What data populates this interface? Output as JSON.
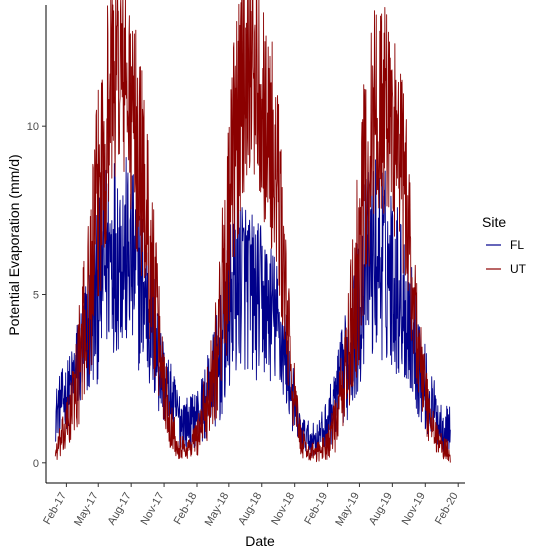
{
  "chart_data": {
    "type": "line",
    "title": "",
    "xlabel": "Date",
    "ylabel": "Potential Evaporation (mm/d)",
    "xlim": [
      "2016-12-06",
      "2020-02-20"
    ],
    "ylim": [
      -0.6,
      13.6
    ],
    "grid": false,
    "legend": {
      "title": "Site",
      "placement": "right"
    },
    "x_ticks": [
      {
        "date": "2017-02-01",
        "label": "Feb-17"
      },
      {
        "date": "2017-05-01",
        "label": "May-17"
      },
      {
        "date": "2017-08-01",
        "label": "Aug-17"
      },
      {
        "date": "2017-11-01",
        "label": "Nov-17"
      },
      {
        "date": "2018-02-01",
        "label": "Feb-18"
      },
      {
        "date": "2018-05-01",
        "label": "May-18"
      },
      {
        "date": "2018-08-01",
        "label": "Aug-18"
      },
      {
        "date": "2018-11-01",
        "label": "Nov-18"
      },
      {
        "date": "2019-02-01",
        "label": "Feb-19"
      },
      {
        "date": "2019-05-01",
        "label": "May-19"
      },
      {
        "date": "2019-08-01",
        "label": "Aug-19"
      },
      {
        "date": "2019-11-01",
        "label": "Nov-19"
      },
      {
        "date": "2020-02-01",
        "label": "Feb-20"
      }
    ],
    "y_ticks": [
      0,
      5,
      10
    ],
    "series": [
      {
        "name": "FL",
        "color": "#00008b",
        "x": [
          "2017-01-01",
          "2017-01-15",
          "2017-02-01",
          "2017-02-15",
          "2017-03-01",
          "2017-03-15",
          "2017-04-01",
          "2017-04-15",
          "2017-05-01",
          "2017-05-15",
          "2017-06-01",
          "2017-06-15",
          "2017-07-01",
          "2017-07-15",
          "2017-08-01",
          "2017-08-15",
          "2017-09-01",
          "2017-09-15",
          "2017-10-01",
          "2017-10-15",
          "2017-11-01",
          "2017-11-15",
          "2017-12-01",
          "2017-12-15",
          "2018-01-01",
          "2018-01-15",
          "2018-02-01",
          "2018-02-15",
          "2018-03-01",
          "2018-03-15",
          "2018-04-01",
          "2018-04-15",
          "2018-05-01",
          "2018-05-15",
          "2018-06-01",
          "2018-06-15",
          "2018-07-01",
          "2018-07-15",
          "2018-08-01",
          "2018-08-15",
          "2018-09-01",
          "2018-09-15",
          "2018-10-01",
          "2018-10-15",
          "2018-11-01",
          "2018-11-15",
          "2018-12-01",
          "2018-12-15",
          "2019-01-01",
          "2019-01-15",
          "2019-02-01",
          "2019-02-15",
          "2019-03-01",
          "2019-03-15",
          "2019-04-01",
          "2019-04-15",
          "2019-05-01",
          "2019-05-15",
          "2019-06-01",
          "2019-06-15",
          "2019-07-01",
          "2019-07-15",
          "2019-08-01",
          "2019-08-15",
          "2019-09-01",
          "2019-09-15",
          "2019-10-01",
          "2019-10-15",
          "2019-11-01",
          "2019-11-15",
          "2019-12-01",
          "2019-12-15",
          "2020-01-01",
          "2020-01-10"
        ],
        "values": [
          1.4,
          1.8,
          2.0,
          2.3,
          2.8,
          3.2,
          3.8,
          4.3,
          5.0,
          5.8,
          6.2,
          6.5,
          6.4,
          6.2,
          5.9,
          5.6,
          5.2,
          4.6,
          3.9,
          3.1,
          2.4,
          2.0,
          1.6,
          1.3,
          1.2,
          1.2,
          1.4,
          1.6,
          1.9,
          2.3,
          2.8,
          3.5,
          4.3,
          5.2,
          5.6,
          5.4,
          5.1,
          4.8,
          4.8,
          4.6,
          4.4,
          4.0,
          3.4,
          2.6,
          1.6,
          1.0,
          0.8,
          0.7,
          0.7,
          0.9,
          1.2,
          1.6,
          2.1,
          2.6,
          3.1,
          3.8,
          4.6,
          5.6,
          6.0,
          6.2,
          6.0,
          5.8,
          5.6,
          5.2,
          4.8,
          4.3,
          3.6,
          2.9,
          2.2,
          1.7,
          1.4,
          1.1,
          1.0,
          1.0
        ],
        "spread": [
          0.8,
          0.9,
          1.0,
          1.1,
          1.4,
          1.7,
          2.0,
          2.3,
          2.6,
          3.0,
          3.1,
          3.2,
          3.1,
          3.0,
          2.9,
          2.8,
          2.6,
          2.4,
          2.1,
          1.7,
          1.3,
          1.1,
          1.0,
          0.9,
          0.8,
          0.8,
          0.9,
          1.0,
          1.2,
          1.5,
          1.8,
          2.1,
          2.4,
          2.7,
          2.8,
          2.7,
          2.5,
          2.4,
          2.3,
          2.2,
          2.1,
          1.9,
          1.6,
          1.3,
          0.9,
          0.6,
          0.5,
          0.5,
          0.5,
          0.6,
          0.8,
          1.0,
          1.2,
          1.5,
          1.8,
          2.1,
          2.4,
          2.8,
          3.0,
          3.1,
          3.0,
          2.9,
          2.8,
          2.6,
          2.4,
          2.2,
          1.9,
          1.6,
          1.3,
          1.1,
          0.9,
          0.8,
          0.7,
          0.7
        ]
      },
      {
        "name": "UT",
        "color": "#8b0000",
        "x": [
          "2017-01-01",
          "2017-01-15",
          "2017-02-01",
          "2017-02-15",
          "2017-03-01",
          "2017-03-15",
          "2017-04-01",
          "2017-04-15",
          "2017-05-01",
          "2017-05-15",
          "2017-06-01",
          "2017-06-15",
          "2017-07-01",
          "2017-07-15",
          "2017-08-01",
          "2017-08-15",
          "2017-09-01",
          "2017-09-15",
          "2017-10-01",
          "2017-10-15",
          "2017-11-01",
          "2017-11-15",
          "2017-12-01",
          "2017-12-15",
          "2018-01-01",
          "2018-01-15",
          "2018-02-01",
          "2018-02-15",
          "2018-03-01",
          "2018-03-15",
          "2018-04-01",
          "2018-04-15",
          "2018-05-01",
          "2018-05-15",
          "2018-06-01",
          "2018-06-15",
          "2018-07-01",
          "2018-07-15",
          "2018-08-01",
          "2018-08-15",
          "2018-09-01",
          "2018-09-15",
          "2018-10-01",
          "2018-10-15",
          "2018-11-01",
          "2018-11-15",
          "2018-12-01",
          "2018-12-15",
          "2019-01-01",
          "2019-01-15",
          "2019-02-01",
          "2019-02-15",
          "2019-03-01",
          "2019-03-15",
          "2019-04-01",
          "2019-04-15",
          "2019-05-01",
          "2019-05-15",
          "2019-06-01",
          "2019-06-15",
          "2019-07-01",
          "2019-07-15",
          "2019-08-01",
          "2019-08-15",
          "2019-09-01",
          "2019-09-15",
          "2019-10-01",
          "2019-10-15",
          "2019-11-01",
          "2019-11-15",
          "2019-12-01",
          "2019-12-15",
          "2020-01-01",
          "2020-01-10"
        ],
        "values": [
          0.3,
          0.6,
          1.0,
          1.6,
          2.4,
          3.4,
          4.6,
          6.0,
          7.8,
          9.4,
          10.8,
          11.6,
          11.8,
          11.2,
          10.4,
          9.6,
          8.6,
          7.2,
          5.4,
          3.8,
          2.4,
          1.4,
          0.8,
          0.5,
          0.4,
          0.5,
          0.8,
          1.2,
          1.8,
          2.6,
          3.6,
          5.2,
          7.0,
          9.0,
          10.8,
          11.8,
          12.2,
          11.8,
          11.0,
          10.0,
          9.2,
          8.0,
          5.8,
          3.6,
          1.8,
          0.8,
          0.4,
          0.3,
          0.3,
          0.4,
          0.6,
          0.9,
          1.4,
          2.2,
          3.2,
          4.6,
          6.2,
          8.0,
          9.6,
          10.4,
          10.6,
          10.4,
          10.0,
          9.4,
          8.4,
          6.8,
          4.8,
          3.2,
          2.0,
          1.2,
          0.8,
          0.5,
          0.4,
          0.3
        ],
        "spread": [
          0.3,
          0.5,
          0.8,
          1.1,
          1.5,
          2.0,
          2.5,
          3.0,
          3.4,
          3.6,
          3.6,
          3.4,
          3.2,
          3.2,
          3.3,
          3.3,
          3.2,
          3.0,
          2.6,
          2.0,
          1.4,
          0.9,
          0.6,
          0.4,
          0.3,
          0.4,
          0.6,
          0.9,
          1.2,
          1.6,
          2.2,
          2.8,
          3.4,
          3.8,
          3.8,
          3.6,
          3.4,
          3.4,
          3.4,
          3.3,
          3.2,
          3.0,
          2.5,
          1.8,
          1.1,
          0.6,
          0.3,
          0.3,
          0.3,
          0.3,
          0.5,
          0.7,
          1.0,
          1.4,
          2.0,
          2.6,
          3.2,
          3.6,
          3.6,
          3.4,
          3.3,
          3.3,
          3.3,
          3.2,
          3.0,
          2.7,
          2.2,
          1.6,
          1.1,
          0.7,
          0.5,
          0.4,
          0.3,
          0.3
        ]
      }
    ]
  }
}
